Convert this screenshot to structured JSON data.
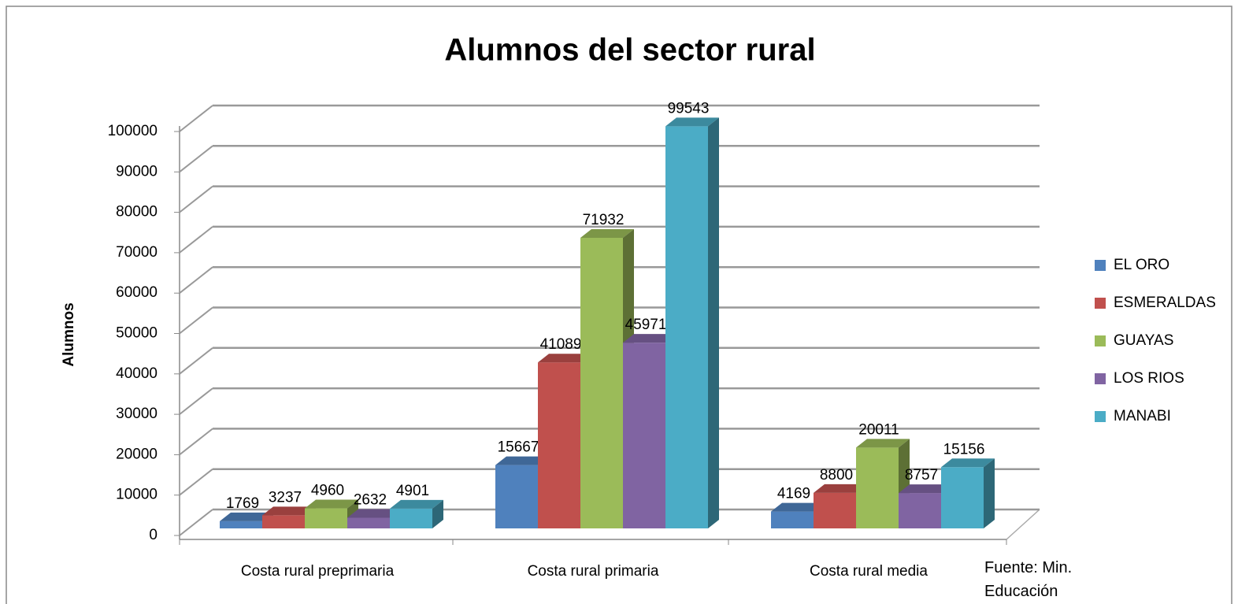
{
  "chart_data": {
    "type": "bar3d",
    "title": "Alumnos del sector rural",
    "y_label": "Alumnos",
    "annotation": "Fuente: Min. Educación",
    "categories": [
      "Costa rural preprimaria",
      "Costa rural primaria",
      "Costa rural media"
    ],
    "series": [
      {
        "name": "EL ORO",
        "color": "#4f81bd",
        "values": [
          1769,
          15667,
          4169
        ]
      },
      {
        "name": "ESMERALDAS",
        "color": "#c0504d",
        "values": [
          3237,
          41089,
          8800
        ]
      },
      {
        "name": "GUAYAS",
        "color": "#9bbb59",
        "values": [
          4960,
          71932,
          20011
        ]
      },
      {
        "name": "LOS RIOS",
        "color": "#8064a2",
        "values": [
          2632,
          45971,
          8757
        ]
      },
      {
        "name": "MANABI",
        "color": "#4bacc6",
        "values": [
          4901,
          99543,
          15156
        ]
      }
    ],
    "ylim": [
      0,
      100000
    ],
    "yticks": [
      0,
      10000,
      20000,
      30000,
      40000,
      50000,
      60000,
      70000,
      80000,
      90000,
      100000
    ],
    "grid": true,
    "legend": "right"
  }
}
